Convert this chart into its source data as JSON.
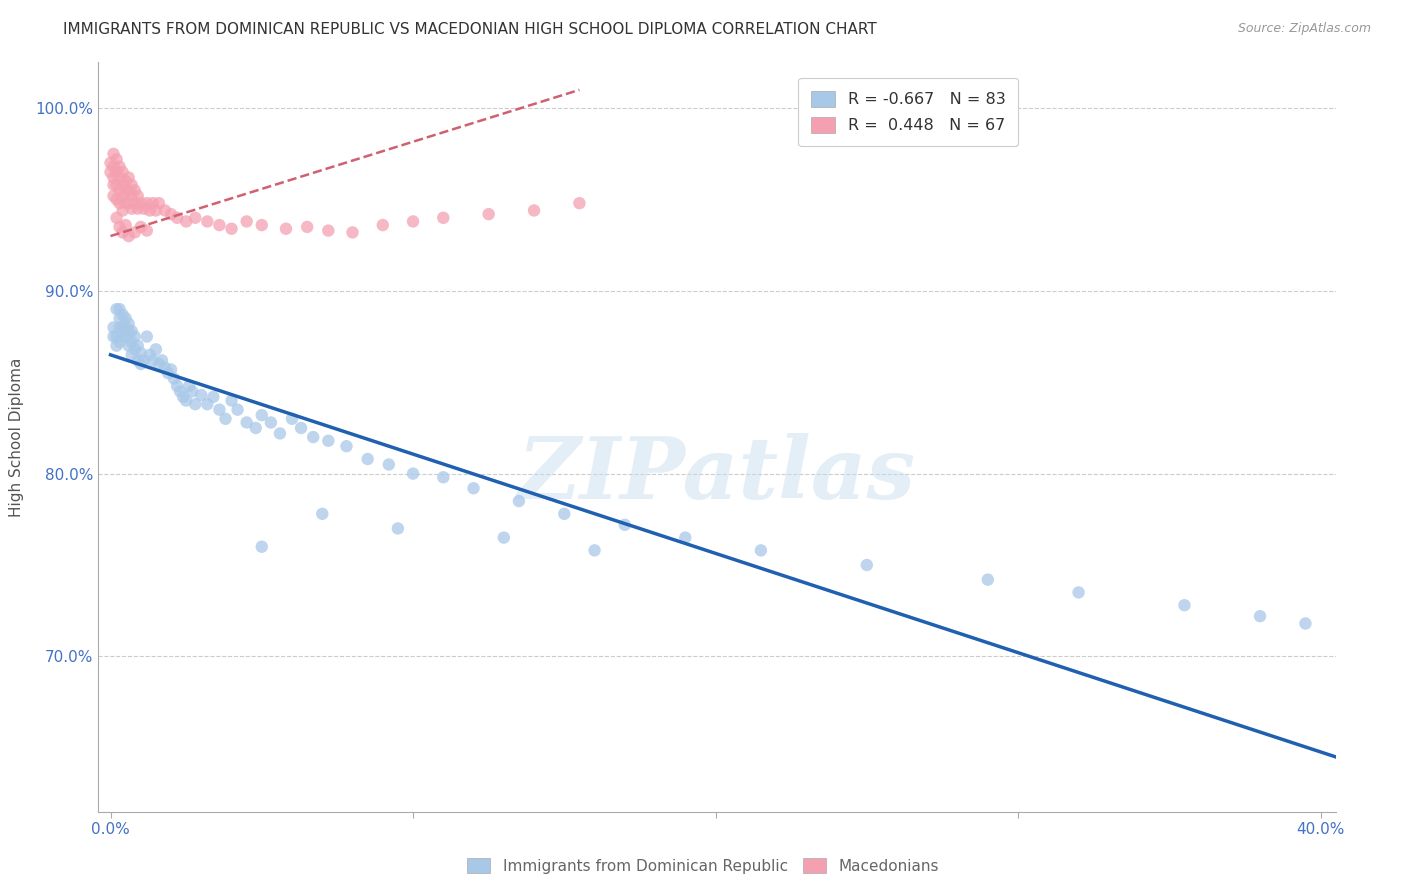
{
  "title": "IMMIGRANTS FROM DOMINICAN REPUBLIC VS MACEDONIAN HIGH SCHOOL DIPLOMA CORRELATION CHART",
  "source": "Source: ZipAtlas.com",
  "ylabel": "High School Diploma",
  "blue_R": -0.667,
  "blue_N": 83,
  "pink_R": 0.448,
  "pink_N": 67,
  "blue_color": "#a8c8e8",
  "pink_color": "#f4a0b0",
  "blue_line_color": "#2060b0",
  "pink_line_color": "#d06070",
  "watermark": "ZIPatlas",
  "xlim": [
    -0.004,
    0.405
  ],
  "ylim": [
    0.615,
    1.025
  ],
  "xlabel_ticks": [
    0.0,
    0.1,
    0.2,
    0.3,
    0.4
  ],
  "xlabel_labels": [
    "0.0%",
    "",
    "",
    "",
    "40.0%"
  ],
  "ylabel_ticks": [
    0.7,
    0.8,
    0.9,
    1.0
  ],
  "ylabel_labels": [
    "70.0%",
    "80.0%",
    "90.0%",
    "100.0%"
  ],
  "blue_trend_x": [
    0.0,
    0.405
  ],
  "blue_trend_y": [
    0.865,
    0.645
  ],
  "pink_trend_x": [
    0.0,
    0.155
  ],
  "pink_trend_y": [
    0.93,
    1.01
  ],
  "blue_scatter_x": [
    0.001,
    0.001,
    0.002,
    0.002,
    0.002,
    0.003,
    0.003,
    0.003,
    0.003,
    0.004,
    0.004,
    0.004,
    0.005,
    0.005,
    0.005,
    0.006,
    0.006,
    0.006,
    0.007,
    0.007,
    0.007,
    0.008,
    0.008,
    0.009,
    0.009,
    0.01,
    0.01,
    0.011,
    0.012,
    0.013,
    0.014,
    0.015,
    0.016,
    0.017,
    0.018,
    0.019,
    0.02,
    0.021,
    0.022,
    0.023,
    0.024,
    0.025,
    0.026,
    0.027,
    0.028,
    0.03,
    0.032,
    0.034,
    0.036,
    0.038,
    0.04,
    0.042,
    0.045,
    0.048,
    0.05,
    0.053,
    0.056,
    0.06,
    0.063,
    0.067,
    0.072,
    0.078,
    0.085,
    0.092,
    0.1,
    0.11,
    0.12,
    0.135,
    0.15,
    0.17,
    0.19,
    0.215,
    0.25,
    0.29,
    0.32,
    0.355,
    0.38,
    0.395,
    0.05,
    0.07,
    0.095,
    0.13,
    0.16
  ],
  "blue_scatter_y": [
    0.88,
    0.875,
    0.89,
    0.875,
    0.87,
    0.89,
    0.885,
    0.88,
    0.872,
    0.887,
    0.88,
    0.875,
    0.885,
    0.88,
    0.875,
    0.882,
    0.878,
    0.87,
    0.878,
    0.872,
    0.865,
    0.875,
    0.868,
    0.87,
    0.862,
    0.866,
    0.86,
    0.862,
    0.875,
    0.865,
    0.862,
    0.868,
    0.86,
    0.862,
    0.858,
    0.855,
    0.857,
    0.852,
    0.848,
    0.845,
    0.842,
    0.84,
    0.848,
    0.845,
    0.838,
    0.843,
    0.838,
    0.842,
    0.835,
    0.83,
    0.84,
    0.835,
    0.828,
    0.825,
    0.832,
    0.828,
    0.822,
    0.83,
    0.825,
    0.82,
    0.818,
    0.815,
    0.808,
    0.805,
    0.8,
    0.798,
    0.792,
    0.785,
    0.778,
    0.772,
    0.765,
    0.758,
    0.75,
    0.742,
    0.735,
    0.728,
    0.722,
    0.718,
    0.76,
    0.778,
    0.77,
    0.765,
    0.758
  ],
  "pink_scatter_x": [
    0.0,
    0.0,
    0.001,
    0.001,
    0.001,
    0.001,
    0.001,
    0.002,
    0.002,
    0.002,
    0.002,
    0.003,
    0.003,
    0.003,
    0.003,
    0.004,
    0.004,
    0.004,
    0.004,
    0.005,
    0.005,
    0.005,
    0.006,
    0.006,
    0.006,
    0.007,
    0.007,
    0.007,
    0.008,
    0.008,
    0.009,
    0.009,
    0.01,
    0.011,
    0.012,
    0.013,
    0.014,
    0.015,
    0.016,
    0.018,
    0.02,
    0.022,
    0.025,
    0.028,
    0.032,
    0.036,
    0.04,
    0.045,
    0.05,
    0.058,
    0.065,
    0.072,
    0.08,
    0.09,
    0.1,
    0.11,
    0.125,
    0.14,
    0.155,
    0.002,
    0.003,
    0.004,
    0.005,
    0.006,
    0.008,
    0.01,
    0.012
  ],
  "pink_scatter_y": [
    0.97,
    0.965,
    0.975,
    0.968,
    0.962,
    0.958,
    0.952,
    0.972,
    0.965,
    0.958,
    0.95,
    0.968,
    0.962,
    0.955,
    0.948,
    0.965,
    0.958,
    0.952,
    0.944,
    0.96,
    0.954,
    0.948,
    0.962,
    0.955,
    0.948,
    0.958,
    0.952,
    0.945,
    0.955,
    0.948,
    0.952,
    0.945,
    0.948,
    0.945,
    0.948,
    0.944,
    0.948,
    0.944,
    0.948,
    0.944,
    0.942,
    0.94,
    0.938,
    0.94,
    0.938,
    0.936,
    0.934,
    0.938,
    0.936,
    0.934,
    0.935,
    0.933,
    0.932,
    0.936,
    0.938,
    0.94,
    0.942,
    0.944,
    0.948,
    0.94,
    0.935,
    0.932,
    0.936,
    0.93,
    0.932,
    0.935,
    0.933
  ]
}
